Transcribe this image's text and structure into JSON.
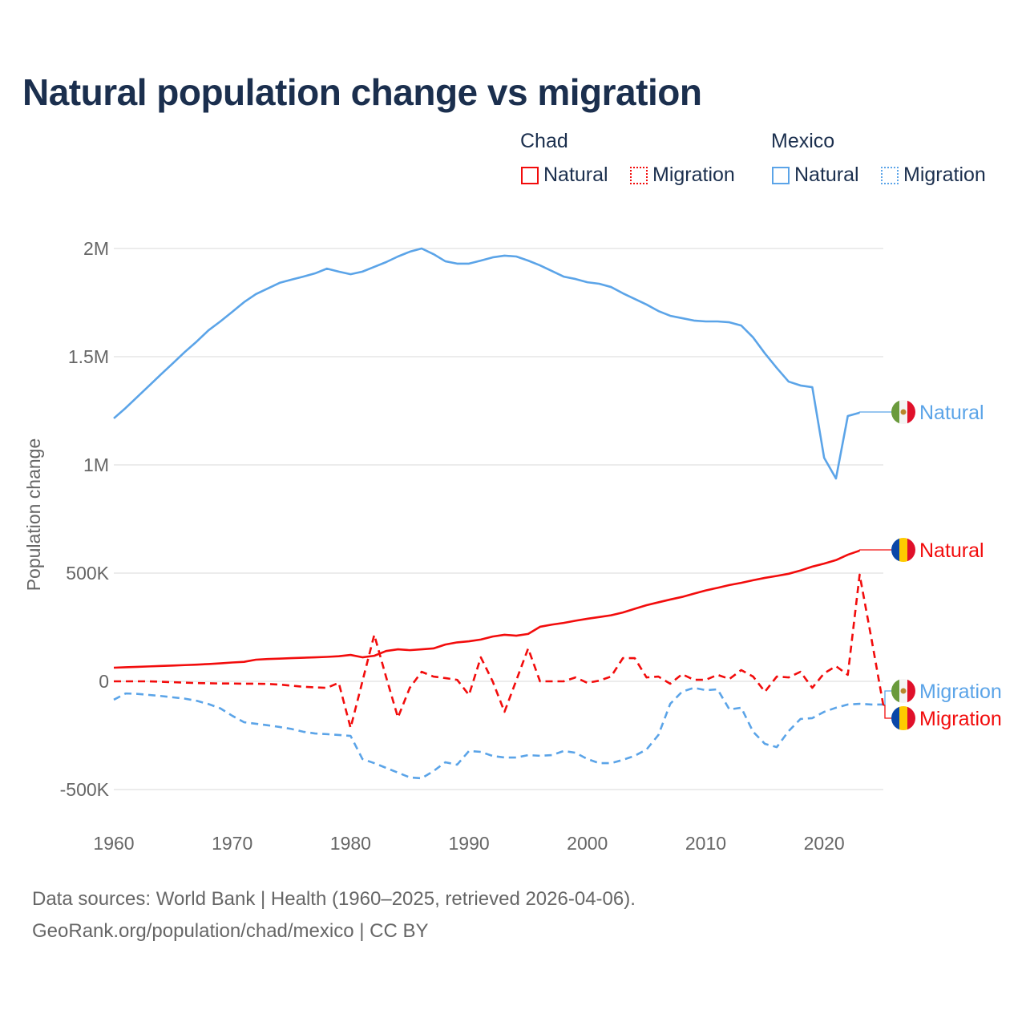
{
  "chart_data": {
    "type": "line",
    "title": "Natural population change vs migration",
    "ylabel": "Population change",
    "xlabel": "",
    "xlim": [
      1960,
      2025
    ],
    "ylim": [
      -500000,
      2000000
    ],
    "x_ticks": [
      "1960",
      "1970",
      "1980",
      "1990",
      "2000",
      "2010",
      "2020"
    ],
    "y_ticks": [
      {
        "v": 2000000,
        "label": "2M"
      },
      {
        "v": 1500000,
        "label": "1.5M"
      },
      {
        "v": 1000000,
        "label": "1M"
      },
      {
        "v": 500000,
        "label": "500K"
      },
      {
        "v": 0,
        "label": "0"
      },
      {
        "v": -500000,
        "label": "-500K"
      }
    ],
    "grid": true,
    "legend": {
      "placement": "top-right",
      "groups": [
        {
          "name": "Chad",
          "items": [
            "Natural",
            "Migration"
          ]
        },
        {
          "name": "Mexico",
          "items": [
            "Natural",
            "Migration"
          ]
        }
      ]
    },
    "start_year": 1960,
    "series": [
      {
        "name": "Mexico Natural",
        "country": "Mexico",
        "kind": "Natural",
        "color": "#5ba4e8",
        "dash": false,
        "end_label": "Natural",
        "values": [
          1215,
          1263,
          1315,
          1367,
          1419,
          1470,
          1522,
          1570,
          1622,
          1663,
          1707,
          1752,
          1789,
          1815,
          1841,
          1856,
          1870,
          1885,
          1907,
          1893,
          1881,
          1893,
          1915,
          1937,
          1963,
          1985,
          2000,
          1974,
          1941,
          1930,
          1930,
          1944,
          1959,
          1967,
          1963,
          1944,
          1922,
          1896,
          1870,
          1859,
          1844,
          1837,
          1822,
          1793,
          1767,
          1741,
          1711,
          1689,
          1678,
          1667,
          1663,
          1663,
          1659,
          1644,
          1589,
          1515,
          1448,
          1385,
          1367,
          1359,
          1033,
          937,
          1226,
          1241
        ]
      },
      {
        "name": "Chad Natural",
        "country": "Chad",
        "kind": "Natural",
        "color": "#f20c0c",
        "dash": false,
        "end_label": "Natural",
        "values": [
          63,
          65,
          67,
          69,
          71,
          73,
          75,
          77,
          80,
          83,
          87,
          90,
          100,
          103,
          105,
          107,
          109,
          111,
          113,
          116,
          122,
          111,
          118,
          140,
          148,
          144,
          148,
          152,
          170,
          180,
          185,
          193,
          207,
          215,
          211,
          219,
          252,
          262,
          270,
          280,
          289,
          297,
          305,
          318,
          335,
          352,
          365,
          378,
          390,
          405,
          420,
          432,
          445,
          455,
          467,
          478,
          487,
          497,
          512,
          530,
          544,
          560,
          585,
          604
        ]
      },
      {
        "name": "Mexico Migration",
        "country": "Mexico",
        "kind": "Migration",
        "color": "#5ba4e8",
        "dash": true,
        "end_label": "Migration",
        "values": [
          -85,
          -56,
          -58,
          -63,
          -68,
          -74,
          -80,
          -90,
          -105,
          -125,
          -159,
          -189,
          -196,
          -203,
          -211,
          -220,
          -233,
          -241,
          -244,
          -248,
          -252,
          -359,
          -378,
          -400,
          -422,
          -444,
          -448,
          -415,
          -374,
          -385,
          -322,
          -326,
          -345,
          -352,
          -352,
          -341,
          -344,
          -341,
          -322,
          -330,
          -359,
          -378,
          -378,
          -363,
          -344,
          -315,
          -248,
          -104,
          -48,
          -30,
          -41,
          -37,
          -130,
          -122,
          -233,
          -289,
          -304,
          -230,
          -174,
          -170,
          -141,
          -122,
          -107,
          -104,
          -107,
          -107
        ]
      },
      {
        "name": "Chad Migration",
        "country": "Chad",
        "kind": "Migration",
        "color": "#f20c0c",
        "dash": true,
        "end_label": "Migration",
        "values": [
          0,
          0,
          0,
          0,
          -2,
          -4,
          -6,
          -8,
          -9,
          -10,
          -10,
          -11,
          -11,
          -12,
          -15,
          -20,
          -25,
          -28,
          -30,
          -7,
          -215,
          0,
          215,
          20,
          -167,
          -30,
          44,
          22,
          15,
          7,
          -63,
          111,
          0,
          -141,
          5,
          152,
          0,
          0,
          0,
          18,
          -7,
          3,
          22,
          107,
          107,
          18,
          22,
          -11,
          33,
          7,
          7,
          30,
          11,
          52,
          22,
          -48,
          22,
          18,
          44,
          -30,
          37,
          70,
          30,
          493,
          196,
          -111
        ]
      }
    ],
    "value_unit": "thousands"
  },
  "legend": {
    "chad": "Chad",
    "mexico": "Mexico",
    "chad_natural": "Natural",
    "chad_migration": "Migration",
    "mexico_natural": "Natural",
    "mexico_migration": "Migration"
  },
  "colors": {
    "chad": "#f20c0c",
    "mexico": "#5ba4e8",
    "title": "#1b2f4e"
  },
  "footer": {
    "line1": "Data sources: World Bank | Health (1960–2025, retrieved 2026-04-06).",
    "line2": "GeoRank.org/population/chad/mexico | CC BY"
  }
}
